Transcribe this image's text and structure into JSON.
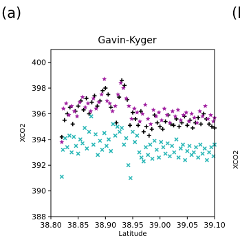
{
  "panel_label": "(a)",
  "next_panel_fragment": "(b",
  "next_panel_ylabel_fragment": "XCO2",
  "chart_data": {
    "type": "scatter",
    "title": "Gavin-Kyger",
    "xlabel": "Latitude",
    "ylabel": "XCO2",
    "xlim": [
      38.8,
      39.1
    ],
    "ylim": [
      388,
      401
    ],
    "x_ticks": [
      38.8,
      38.85,
      38.9,
      38.95,
      39.0,
      39.05,
      39.1
    ],
    "x_tick_labels": [
      "38.80",
      "38.85",
      "38.90",
      "38.95",
      "39.00",
      "39.05",
      "39.10"
    ],
    "y_ticks": [
      388,
      390,
      392,
      394,
      396,
      398,
      400
    ],
    "y_tick_labels": [
      "388",
      "390",
      "392",
      "394",
      "396",
      "398",
      "400"
    ],
    "grid": false,
    "series": [
      {
        "marker": "plus",
        "color": "#000000",
        "points": [
          [
            38.82,
            394.2
          ],
          [
            38.825,
            395.5
          ],
          [
            38.83,
            396.0
          ],
          [
            38.835,
            396.5
          ],
          [
            38.84,
            395.2
          ],
          [
            38.845,
            396.2
          ],
          [
            38.85,
            396.6
          ],
          [
            38.855,
            397.0
          ],
          [
            38.86,
            396.3
          ],
          [
            38.865,
            397.2
          ],
          [
            38.87,
            396.0
          ],
          [
            38.875,
            396.9
          ],
          [
            38.88,
            397.4
          ],
          [
            38.885,
            396.6
          ],
          [
            38.89,
            397.0
          ],
          [
            38.895,
            397.8
          ],
          [
            38.9,
            398.0
          ],
          [
            38.905,
            397.5
          ],
          [
            38.91,
            396.5
          ],
          [
            38.92,
            395.3
          ],
          [
            38.925,
            397.3
          ],
          [
            38.93,
            398.6
          ],
          [
            38.935,
            398.2
          ],
          [
            38.94,
            397.1
          ],
          [
            38.945,
            395.1
          ],
          [
            38.95,
            396.1
          ],
          [
            38.955,
            395.6
          ],
          [
            38.96,
            395.1
          ],
          [
            38.965,
            396.2
          ],
          [
            38.97,
            394.6
          ],
          [
            38.975,
            395.0
          ],
          [
            38.98,
            394.3
          ],
          [
            38.985,
            394.8
          ],
          [
            38.99,
            395.9
          ],
          [
            38.995,
            395.3
          ],
          [
            39.0,
            395.0
          ],
          [
            39.005,
            394.8
          ],
          [
            39.01,
            395.4
          ],
          [
            39.015,
            395.9
          ],
          [
            39.02,
            395.2
          ],
          [
            39.025,
            395.1
          ],
          [
            39.03,
            395.6
          ],
          [
            39.035,
            395.0
          ],
          [
            39.04,
            395.3
          ],
          [
            39.045,
            395.8
          ],
          [
            39.05,
            395.1
          ],
          [
            39.055,
            395.5
          ],
          [
            39.06,
            394.9
          ],
          [
            39.065,
            395.3
          ],
          [
            39.07,
            395.7
          ],
          [
            39.075,
            395.2
          ],
          [
            39.08,
            396.0
          ],
          [
            39.085,
            395.6
          ],
          [
            39.09,
            395.2
          ],
          [
            39.095,
            395.0
          ],
          [
            39.1,
            394.9
          ]
        ]
      },
      {
        "marker": "star",
        "color": "#a020a0",
        "points": [
          [
            38.82,
            393.8
          ],
          [
            38.823,
            396.4
          ],
          [
            38.828,
            396.8
          ],
          [
            38.833,
            395.9
          ],
          [
            38.838,
            396.6
          ],
          [
            38.843,
            396.2
          ],
          [
            38.848,
            395.8
          ],
          [
            38.853,
            396.9
          ],
          [
            38.858,
            397.3
          ],
          [
            38.863,
            396.5
          ],
          [
            38.868,
            396.8
          ],
          [
            38.873,
            396.2
          ],
          [
            38.878,
            397.2
          ],
          [
            38.883,
            396.4
          ],
          [
            38.888,
            396.9
          ],
          [
            38.893,
            397.5
          ],
          [
            38.898,
            398.7
          ],
          [
            38.903,
            397.0
          ],
          [
            38.908,
            396.8
          ],
          [
            38.913,
            396.2
          ],
          [
            38.918,
            396.6
          ],
          [
            38.923,
            397.5
          ],
          [
            38.928,
            398.4
          ],
          [
            38.933,
            398.0
          ],
          [
            38.938,
            397.2
          ],
          [
            38.943,
            396.6
          ],
          [
            38.948,
            395.6
          ],
          [
            38.953,
            396.4
          ],
          [
            38.958,
            396.1
          ],
          [
            38.963,
            395.4
          ],
          [
            38.968,
            396.0
          ],
          [
            38.973,
            396.7
          ],
          [
            38.978,
            395.6
          ],
          [
            38.983,
            395.2
          ],
          [
            38.988,
            396.3
          ],
          [
            38.993,
            395.8
          ],
          [
            38.998,
            396.1
          ],
          [
            39.003,
            395.5
          ],
          [
            39.008,
            396.4
          ],
          [
            39.013,
            395.9
          ],
          [
            39.018,
            395.3
          ],
          [
            39.023,
            396.2
          ],
          [
            39.028,
            395.8
          ],
          [
            39.033,
            396.3
          ],
          [
            39.038,
            395.5
          ],
          [
            39.043,
            395.9
          ],
          [
            39.048,
            396.1
          ],
          [
            39.053,
            395.4
          ],
          [
            39.058,
            396.0
          ],
          [
            39.063,
            395.7
          ],
          [
            39.068,
            395.3
          ],
          [
            39.073,
            396.2
          ],
          [
            39.078,
            395.8
          ],
          [
            39.083,
            396.6
          ],
          [
            39.088,
            395.6
          ],
          [
            39.093,
            395.9
          ],
          [
            39.098,
            395.4
          ],
          [
            39.1,
            395.7
          ]
        ]
      },
      {
        "marker": "x",
        "color": "#2ab7b7",
        "points": [
          [
            38.82,
            391.1
          ],
          [
            38.822,
            393.2
          ],
          [
            38.826,
            394.1
          ],
          [
            38.83,
            393.4
          ],
          [
            38.834,
            394.3
          ],
          [
            38.838,
            393.0
          ],
          [
            38.842,
            394.2
          ],
          [
            38.846,
            393.5
          ],
          [
            38.85,
            392.9
          ],
          [
            38.854,
            394.0
          ],
          [
            38.858,
            393.7
          ],
          [
            38.862,
            394.9
          ],
          [
            38.866,
            393.3
          ],
          [
            38.87,
            394.6
          ],
          [
            38.874,
            395.8
          ],
          [
            38.878,
            393.6
          ],
          [
            38.882,
            394.4
          ],
          [
            38.886,
            392.8
          ],
          [
            38.89,
            393.9
          ],
          [
            38.894,
            393.2
          ],
          [
            38.898,
            394.5
          ],
          [
            38.902,
            393.5
          ],
          [
            38.906,
            394.0
          ],
          [
            38.91,
            393.1
          ],
          [
            38.914,
            395.2
          ],
          [
            38.918,
            394.3
          ],
          [
            38.922,
            395.0
          ],
          [
            38.926,
            394.6
          ],
          [
            38.93,
            394.9
          ],
          [
            38.934,
            393.6
          ],
          [
            38.938,
            394.1
          ],
          [
            38.942,
            392.0
          ],
          [
            38.946,
            391.0
          ],
          [
            38.95,
            394.6
          ],
          [
            38.954,
            393.8
          ],
          [
            38.958,
            394.3
          ],
          [
            38.962,
            393.0
          ],
          [
            38.966,
            392.6
          ],
          [
            38.97,
            392.3
          ],
          [
            38.974,
            393.4
          ],
          [
            38.978,
            392.8
          ],
          [
            38.982,
            393.6
          ],
          [
            38.986,
            392.5
          ],
          [
            38.99,
            393.9
          ],
          [
            38.994,
            393.2
          ],
          [
            38.998,
            392.6
          ],
          [
            39.002,
            393.8
          ],
          [
            39.006,
            393.4
          ],
          [
            39.01,
            392.9
          ],
          [
            39.014,
            393.7
          ],
          [
            39.018,
            392.7
          ],
          [
            39.022,
            393.5
          ],
          [
            39.026,
            393.0
          ],
          [
            39.03,
            394.0
          ],
          [
            39.034,
            392.6
          ],
          [
            39.038,
            393.3
          ],
          [
            39.042,
            393.6
          ],
          [
            39.046,
            392.4
          ],
          [
            39.05,
            393.1
          ],
          [
            39.054,
            393.5
          ],
          [
            39.058,
            392.8
          ],
          [
            39.062,
            393.0
          ],
          [
            39.066,
            393.4
          ],
          [
            39.07,
            392.6
          ],
          [
            39.074,
            393.6
          ],
          [
            39.078,
            392.9
          ],
          [
            39.082,
            393.3
          ],
          [
            39.086,
            392.4
          ],
          [
            39.09,
            393.0
          ],
          [
            39.094,
            393.4
          ],
          [
            39.098,
            392.7
          ],
          [
            39.1,
            393.6
          ]
        ]
      }
    ]
  }
}
